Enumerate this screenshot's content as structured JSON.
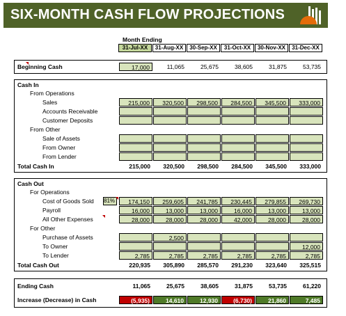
{
  "title": "SIX-MONTH CASH FLOW PROJECTIONS",
  "month_ending_label": "Month Ending",
  "months": [
    "31-Jul-XX",
    "31-Aug-XX",
    "30-Sep-XX",
    "31-Oct-XX",
    "30-Nov-XX",
    "31-Dec-XX"
  ],
  "beginning_cash": {
    "label": "Beginning Cash",
    "values": [
      "17,000",
      "11,065",
      "25,675",
      "38,605",
      "31,875",
      "53,735"
    ]
  },
  "cash_in": {
    "header": "Cash In",
    "from_operations": "From Operations",
    "sales": {
      "label": "Sales",
      "values": [
        "215,000",
        "320,500",
        "298,500",
        "284,500",
        "345,500",
        "333,000"
      ]
    },
    "accounts_receivable": {
      "label": "Accounts Receivable",
      "values": [
        "",
        "",
        "",
        "",
        "",
        ""
      ]
    },
    "customer_deposits": {
      "label": "Customer Deposits",
      "values": [
        "",
        "",
        "",
        "",
        "",
        ""
      ]
    },
    "from_other": "From Other",
    "sale_of_assets": {
      "label": "Sale of Assets",
      "values": [
        "",
        "",
        "",
        "",
        "",
        ""
      ]
    },
    "from_owner": {
      "label": "From Owner",
      "values": [
        "",
        "",
        "",
        "",
        "",
        ""
      ]
    },
    "from_lender": {
      "label": "From Lender",
      "values": [
        "",
        "",
        "",
        "",
        "",
        ""
      ]
    },
    "total": {
      "label": "Total Cash In",
      "values": [
        "215,000",
        "320,500",
        "298,500",
        "284,500",
        "345,500",
        "333,000"
      ]
    }
  },
  "cash_out": {
    "header": "Cash Out",
    "for_operations": "For Operations",
    "cogs": {
      "label": "Cost of Goods Sold",
      "pct": "81%",
      "values": [
        "174,150",
        "259,605",
        "241,785",
        "230,445",
        "279,855",
        "269,730"
      ]
    },
    "payroll": {
      "label": "Payroll",
      "values": [
        "16,000",
        "13,000",
        "13,000",
        "16,000",
        "13,000",
        "13,000"
      ]
    },
    "other_expenses": {
      "label": "All Other Expenses",
      "values": [
        "28,000",
        "28,000",
        "28,000",
        "42,000",
        "28,000",
        "28,000"
      ]
    },
    "for_other": "For Other",
    "purchase_assets": {
      "label": "Purchase of Assets",
      "values": [
        "",
        "2,500",
        "",
        "",
        "",
        ""
      ]
    },
    "to_owner": {
      "label": "To Owner",
      "values": [
        "",
        "",
        "",
        "",
        "",
        "12,000"
      ]
    },
    "to_lender": {
      "label": "To Lender",
      "values": [
        "2,785",
        "2,785",
        "2,785",
        "2,785",
        "2,785",
        "2,785"
      ]
    },
    "total": {
      "label": "Total Cash Out",
      "values": [
        "220,935",
        "305,890",
        "285,570",
        "291,230",
        "323,640",
        "325,515"
      ]
    }
  },
  "ending_cash": {
    "label": "Ending Cash",
    "values": [
      "11,065",
      "25,675",
      "38,605",
      "31,875",
      "53,735",
      "61,220"
    ]
  },
  "change": {
    "label": "Increase (Decrease) in Cash",
    "values": [
      "(5,935)",
      "14,610",
      "12,930",
      "(6,730)",
      "21,860",
      "7,485"
    ],
    "negative": [
      true,
      false,
      false,
      true,
      false,
      false
    ]
  },
  "colors": {
    "banner": "#4f6228",
    "input": "#d8e4bc",
    "positive": "#4f7a28",
    "negative": "#c00000",
    "logo": "#e46c0a"
  }
}
